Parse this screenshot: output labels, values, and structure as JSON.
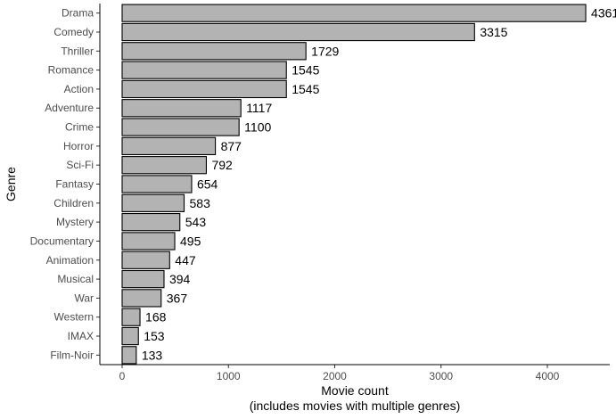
{
  "chart_data": {
    "type": "bar",
    "orientation": "horizontal",
    "categories": [
      "Drama",
      "Comedy",
      "Thriller",
      "Romance",
      "Action",
      "Adventure",
      "Crime",
      "Horror",
      "Sci-Fi",
      "Fantasy",
      "Children",
      "Mystery",
      "Documentary",
      "Animation",
      "Musical",
      "War",
      "Western",
      "IMAX",
      "Film-Noir"
    ],
    "values": [
      4361,
      3315,
      1729,
      1545,
      1545,
      1117,
      1100,
      877,
      792,
      654,
      583,
      543,
      495,
      447,
      394,
      367,
      168,
      153,
      133
    ],
    "data_labels": [
      "4361",
      "3315",
      "1729",
      "1545",
      "1545",
      "1117",
      "1100",
      "877",
      "792",
      "654",
      "583",
      "543",
      "495",
      "447",
      "394",
      "367",
      "168",
      "153",
      "133"
    ],
    "xlabel": "Movie count",
    "xlabel_sub": "(includes movies with multiple genres)",
    "ylabel": "Genre",
    "xlim": [
      -200,
      4580
    ],
    "xticks": [
      0,
      1000,
      2000,
      3000,
      4000
    ],
    "grid": false,
    "legend": "none",
    "colors": {
      "bar_fill": "#b3b3b3",
      "bar_stroke": "#000000",
      "axis": "#000000",
      "tick_text": "#4d4d4d"
    }
  }
}
